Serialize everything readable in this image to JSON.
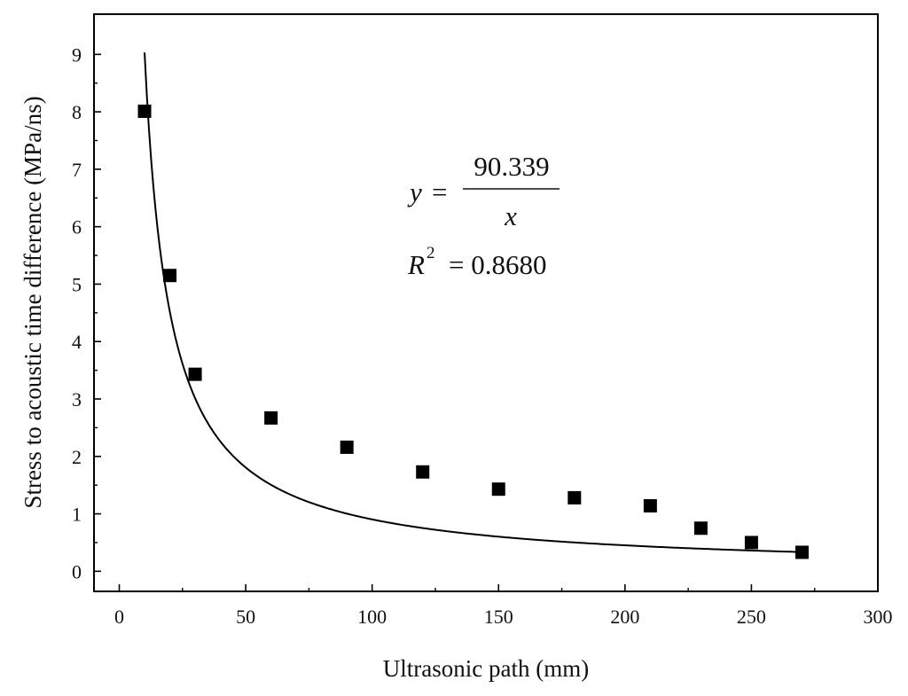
{
  "chart_data": {
    "type": "scatter",
    "xlabel": "Ultrasonic path (mm)",
    "ylabel": "Stress to acoustic time difference (MPa/ns)",
    "xlim": [
      -10,
      300
    ],
    "ylim": [
      -0.35,
      9.7
    ],
    "x_ticks": [
      0,
      50,
      100,
      150,
      200,
      250,
      300
    ],
    "y_ticks": [
      0,
      1,
      2,
      3,
      4,
      5,
      6,
      7,
      8,
      9
    ],
    "grid": false,
    "series": [
      {
        "marker": "square",
        "color": "#000000",
        "points": [
          {
            "x": 10,
            "y": 8.01
          },
          {
            "x": 20,
            "y": 5.15
          },
          {
            "x": 30,
            "y": 3.43
          },
          {
            "x": 60,
            "y": 2.67
          },
          {
            "x": 90,
            "y": 2.16
          },
          {
            "x": 120,
            "y": 1.73
          },
          {
            "x": 150,
            "y": 1.43
          },
          {
            "x": 180,
            "y": 1.28
          },
          {
            "x": 210,
            "y": 1.14
          },
          {
            "x": 230,
            "y": 0.75
          },
          {
            "x": 250,
            "y": 0.5
          },
          {
            "x": 270,
            "y": 0.33
          }
        ]
      }
    ],
    "fit": {
      "equation": "y = 90.339 / x",
      "coefficient": 90.339,
      "x_range": [
        10,
        270
      ],
      "color": "#000000"
    },
    "annotation": {
      "y_var": "y",
      "numerator": "90.339",
      "x_var": "x",
      "r2_label": "R",
      "r2_sup": "2",
      "r2_value": "= 0.8680",
      "equals": "="
    }
  }
}
